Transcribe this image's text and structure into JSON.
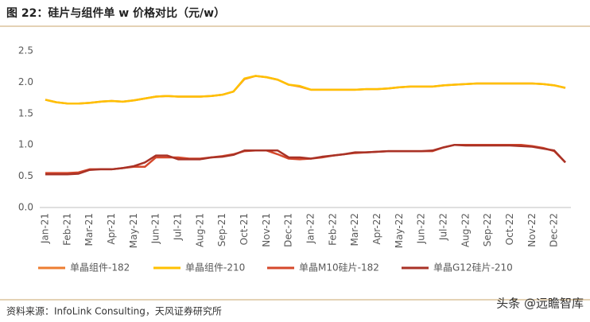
{
  "chart_data": {
    "type": "line",
    "title": "图 22：硅片与组件单 w 价格对比（元/w）",
    "source": "资料来源：InfoLink Consulting，天风证券研究所",
    "watermark": "头条 @远瞻智库",
    "categories": [
      "Jan-21",
      null,
      "Feb-21",
      null,
      "Mar-21",
      null,
      "Apr-21",
      null,
      "May-21",
      null,
      "Jun-21",
      null,
      "Jul-21",
      null,
      "Aug-21",
      null,
      "Sep-21",
      null,
      "Oct-21",
      null,
      "Nov-21",
      null,
      "Dec-21",
      null,
      "Jan-22",
      null,
      "Feb-22",
      null,
      "Mar-22",
      null,
      "Apr-22",
      null,
      "May-22",
      null,
      "Jun-22",
      null,
      "Jul-22",
      null,
      "Aug-22",
      null,
      "Sep-22",
      null,
      "Oct-22",
      null,
      "Nov-22",
      null,
      "Dec-22",
      null
    ],
    "ylim": [
      0,
      2.5
    ],
    "yticks": [
      {
        "value": 0,
        "label": "0.0"
      },
      0.5,
      {
        "value": 1,
        "label": "1.0"
      },
      1.5,
      {
        "value": 2,
        "label": "2.0"
      },
      2.5
    ],
    "legend": "bottom",
    "series": [
      {
        "name": "单晶组件-182",
        "color": "#ED7D31",
        "values": [
          1.72,
          1.68,
          1.66,
          1.66,
          1.67,
          1.69,
          1.7,
          1.69,
          1.71,
          1.74,
          1.77,
          1.78,
          1.77,
          1.77,
          1.77,
          1.78,
          1.8,
          1.85,
          2.05,
          2.1,
          2.08,
          2.04,
          1.96,
          1.93,
          1.88,
          1.88,
          1.88,
          1.88,
          1.88,
          1.89,
          1.89,
          1.9,
          1.92,
          1.93,
          1.93,
          1.93,
          1.95,
          1.96,
          1.97,
          1.98,
          1.98,
          1.98,
          1.98,
          1.98,
          1.98,
          1.97,
          1.95,
          1.91
        ]
      },
      {
        "name": "单晶组件-210",
        "color": "#FFC000",
        "values": [
          1.72,
          1.68,
          1.66,
          1.66,
          1.67,
          1.69,
          1.7,
          1.69,
          1.71,
          1.74,
          1.77,
          1.78,
          1.77,
          1.77,
          1.77,
          1.78,
          1.8,
          1.85,
          2.06,
          2.1,
          2.08,
          2.04,
          1.96,
          1.94,
          1.88,
          1.88,
          1.88,
          1.88,
          1.88,
          1.89,
          1.89,
          1.9,
          1.92,
          1.93,
          1.93,
          1.93,
          1.95,
          1.96,
          1.97,
          1.98,
          1.98,
          1.98,
          1.98,
          1.98,
          1.98,
          1.97,
          1.95,
          1.91
        ]
      },
      {
        "name": "单晶M10硅片-182",
        "color": "#D5482B",
        "values": [
          0.55,
          0.55,
          0.55,
          0.56,
          0.61,
          0.61,
          0.61,
          0.63,
          0.65,
          0.65,
          0.8,
          0.8,
          0.8,
          0.78,
          0.78,
          0.8,
          0.82,
          0.85,
          0.9,
          0.91,
          0.91,
          0.85,
          0.78,
          0.77,
          0.78,
          0.8,
          0.83,
          0.85,
          0.87,
          0.88,
          0.89,
          0.9,
          0.9,
          0.9,
          0.9,
          0.9,
          0.96,
          1.0,
          1.0,
          1.0,
          1.0,
          1.0,
          1.0,
          1.0,
          0.98,
          0.95,
          0.9,
          0.72
        ]
      },
      {
        "name": "单晶G12硅片-210",
        "color": "#A93226",
        "values": [
          0.53,
          0.53,
          0.53,
          0.54,
          0.6,
          0.61,
          0.61,
          0.63,
          0.66,
          0.72,
          0.83,
          0.83,
          0.77,
          0.77,
          0.77,
          0.8,
          0.81,
          0.84,
          0.91,
          0.91,
          0.91,
          0.91,
          0.8,
          0.8,
          0.78,
          0.81,
          0.83,
          0.85,
          0.88,
          0.88,
          0.89,
          0.9,
          0.9,
          0.9,
          0.9,
          0.91,
          0.96,
          1.0,
          0.99,
          0.99,
          0.99,
          0.99,
          0.99,
          0.98,
          0.97,
          0.94,
          0.91,
          0.72
        ]
      }
    ]
  }
}
